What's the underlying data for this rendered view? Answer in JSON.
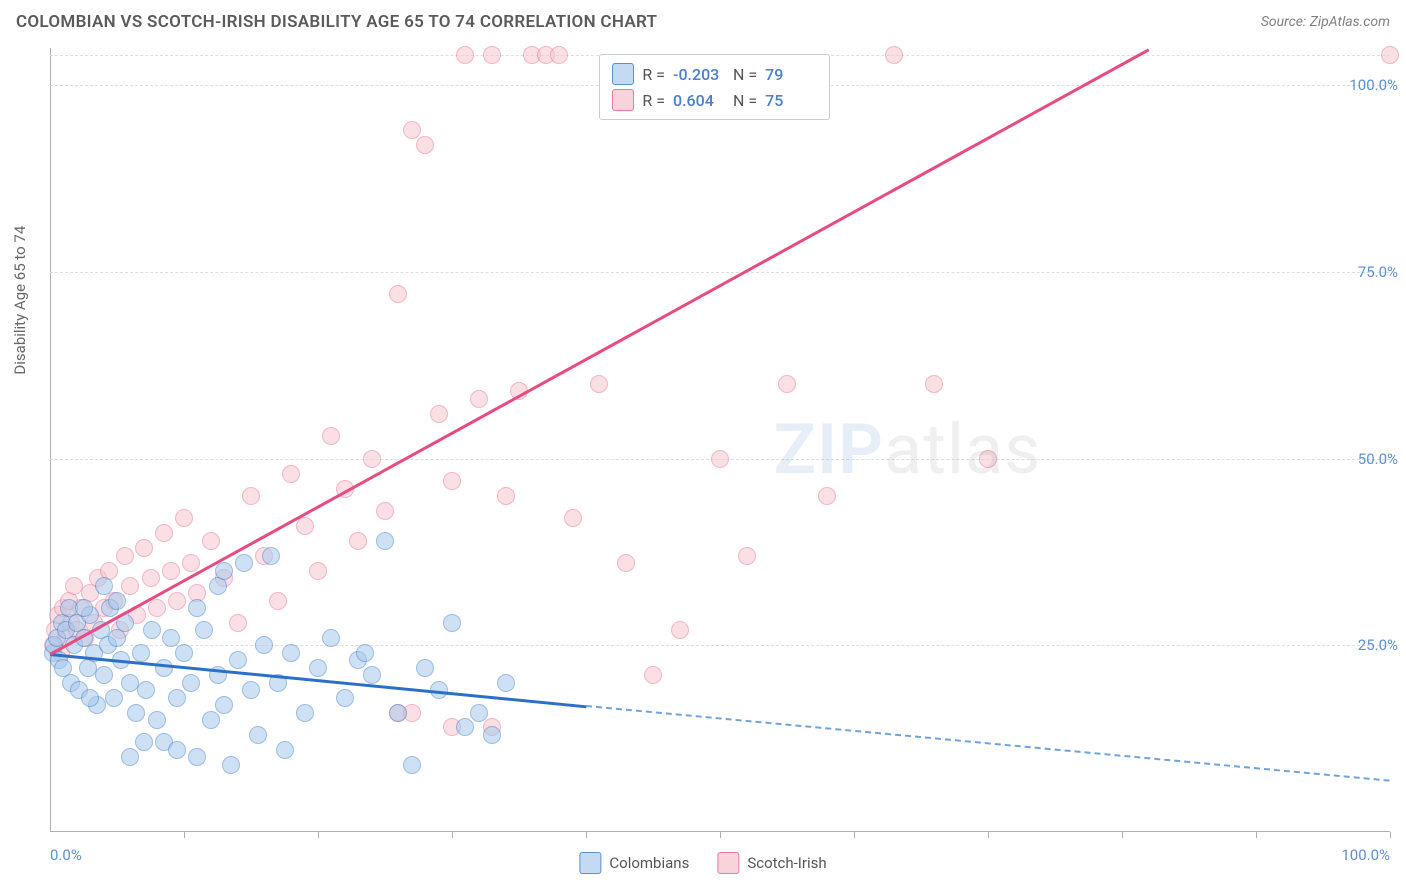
{
  "header": {
    "title": "COLOMBIAN VS SCOTCH-IRISH DISABILITY AGE 65 TO 74 CORRELATION CHART",
    "source": "Source: ZipAtlas.com"
  },
  "watermark": {
    "zip": "ZIP",
    "atlas": "atlas"
  },
  "chart": {
    "type": "scatter",
    "xlim": [
      0,
      100
    ],
    "ylim": [
      0,
      105
    ],
    "y_axis_label": "Disability Age 65 to 74",
    "y_ticks": [
      25,
      50,
      75,
      100
    ],
    "y_tick_labels": [
      "25.0%",
      "50.0%",
      "75.0%",
      "100.0%"
    ],
    "x_ticks": [
      10,
      20,
      30,
      40,
      50,
      60,
      70,
      80,
      90,
      100
    ],
    "x_label_min": "0.0%",
    "x_label_max": "100.0%",
    "grid_color": "#dddddd",
    "background_color": "#ffffff",
    "axis_font_color": "#5b8fd6",
    "series": {
      "blue": {
        "name": "Colombians",
        "fill": "#a7c9ec",
        "stroke": "#4a87c7",
        "r_label": "R =",
        "r_value": "-0.203",
        "n_label": "N =",
        "n_value": "79",
        "trend": {
          "x1": 0,
          "y1": 24,
          "x2_solid": 40,
          "y2_solid": 17,
          "x2_dash": 100,
          "y2_dash": 7
        },
        "points": [
          [
            0.2,
            24
          ],
          [
            0.3,
            25
          ],
          [
            0.5,
            26
          ],
          [
            0.7,
            23
          ],
          [
            0.9,
            28
          ],
          [
            1.0,
            22
          ],
          [
            1.2,
            27
          ],
          [
            1.4,
            30
          ],
          [
            1.6,
            20
          ],
          [
            1.8,
            25
          ],
          [
            2.0,
            28
          ],
          [
            2.2,
            19
          ],
          [
            2.5,
            26
          ],
          [
            2.8,
            22
          ],
          [
            3.0,
            29
          ],
          [
            3.3,
            24
          ],
          [
            3.5,
            17
          ],
          [
            3.8,
            27
          ],
          [
            4.0,
            21
          ],
          [
            4.3,
            25
          ],
          [
            4.5,
            30
          ],
          [
            4.8,
            18
          ],
          [
            5.0,
            26
          ],
          [
            5.3,
            23
          ],
          [
            5.6,
            28
          ],
          [
            6.0,
            20
          ],
          [
            6.4,
            16
          ],
          [
            6.8,
            24
          ],
          [
            7.2,
            19
          ],
          [
            7.6,
            27
          ],
          [
            8.0,
            15
          ],
          [
            8.5,
            22
          ],
          [
            9.0,
            26
          ],
          [
            9.5,
            18
          ],
          [
            10.0,
            24
          ],
          [
            10.5,
            20
          ],
          [
            11.0,
            10
          ],
          [
            11.5,
            27
          ],
          [
            12.0,
            15
          ],
          [
            12.5,
            21
          ],
          [
            13.0,
            17
          ],
          [
            13.5,
            9
          ],
          [
            14.0,
            23
          ],
          [
            14.5,
            36
          ],
          [
            15.0,
            19
          ],
          [
            15.5,
            13
          ],
          [
            16.0,
            25
          ],
          [
            16.5,
            37
          ],
          [
            17.0,
            20
          ],
          [
            17.5,
            11
          ],
          [
            18.0,
            24
          ],
          [
            19.0,
            16
          ],
          [
            20.0,
            22
          ],
          [
            21.0,
            26
          ],
          [
            22.0,
            18
          ],
          [
            23.0,
            23
          ],
          [
            24.0,
            21
          ],
          [
            23.5,
            24
          ],
          [
            25.0,
            39
          ],
          [
            26.0,
            16
          ],
          [
            27.0,
            9
          ],
          [
            28.0,
            22
          ],
          [
            29.0,
            19
          ],
          [
            30.0,
            28
          ],
          [
            31.0,
            14
          ],
          [
            32.0,
            16
          ],
          [
            33.0,
            13
          ],
          [
            34.0,
            20
          ],
          [
            6.0,
            10
          ],
          [
            7.0,
            12
          ],
          [
            8.5,
            12
          ],
          [
            9.5,
            11
          ],
          [
            11.0,
            30
          ],
          [
            12.5,
            33
          ],
          [
            5.0,
            31
          ],
          [
            4.0,
            33
          ],
          [
            3.0,
            18
          ],
          [
            2.5,
            30
          ],
          [
            13.0,
            35
          ]
        ]
      },
      "pink": {
        "name": "Scotch-Irish",
        "fill": "#f7c6cf",
        "stroke": "#e87a9a",
        "r_label": "R =",
        "r_value": "0.604",
        "n_label": "N =",
        "n_value": "75",
        "trend": {
          "x1": 0,
          "y1": 24,
          "x2": 82,
          "y2": 105
        },
        "points": [
          [
            0.2,
            25
          ],
          [
            0.4,
            27
          ],
          [
            0.6,
            29
          ],
          [
            0.8,
            24
          ],
          [
            1.0,
            30
          ],
          [
            1.2,
            26
          ],
          [
            1.4,
            31
          ],
          [
            1.6,
            28
          ],
          [
            1.8,
            33
          ],
          [
            2.0,
            27
          ],
          [
            2.3,
            30
          ],
          [
            2.6,
            26
          ],
          [
            3.0,
            32
          ],
          [
            3.3,
            28
          ],
          [
            3.6,
            34
          ],
          [
            4.0,
            30
          ],
          [
            4.4,
            35
          ],
          [
            4.8,
            31
          ],
          [
            5.2,
            27
          ],
          [
            5.6,
            37
          ],
          [
            6.0,
            33
          ],
          [
            6.5,
            29
          ],
          [
            7.0,
            38
          ],
          [
            7.5,
            34
          ],
          [
            8.0,
            30
          ],
          [
            8.5,
            40
          ],
          [
            9.0,
            35
          ],
          [
            9.5,
            31
          ],
          [
            10.0,
            42
          ],
          [
            10.5,
            36
          ],
          [
            11.0,
            32
          ],
          [
            12.0,
            39
          ],
          [
            13.0,
            34
          ],
          [
            14.0,
            28
          ],
          [
            15.0,
            45
          ],
          [
            16.0,
            37
          ],
          [
            17.0,
            31
          ],
          [
            18.0,
            48
          ],
          [
            19.0,
            41
          ],
          [
            20.0,
            35
          ],
          [
            21.0,
            53
          ],
          [
            22.0,
            46
          ],
          [
            23.0,
            39
          ],
          [
            24.0,
            50
          ],
          [
            25.0,
            43
          ],
          [
            26.0,
            72
          ],
          [
            27.0,
            94
          ],
          [
            28.0,
            92
          ],
          [
            29.0,
            56
          ],
          [
            30.0,
            47
          ],
          [
            31.0,
            104
          ],
          [
            32.0,
            58
          ],
          [
            33.0,
            104
          ],
          [
            34.0,
            45
          ],
          [
            35.0,
            59
          ],
          [
            36.0,
            104
          ],
          [
            37.0,
            104
          ],
          [
            38.0,
            104
          ],
          [
            39.0,
            42
          ],
          [
            41.0,
            60
          ],
          [
            43.0,
            36
          ],
          [
            45.0,
            21
          ],
          [
            47.0,
            27
          ],
          [
            50.0,
            50
          ],
          [
            52.0,
            37
          ],
          [
            55.0,
            60
          ],
          [
            58.0,
            45
          ],
          [
            63.0,
            104
          ],
          [
            66.0,
            60
          ],
          [
            70.0,
            50
          ],
          [
            100.0,
            104
          ],
          [
            30.0,
            14
          ],
          [
            33.0,
            14
          ],
          [
            26.0,
            16
          ],
          [
            27.0,
            16
          ]
        ]
      }
    }
  },
  "bottom_legend": {
    "blue_label": "Colombians",
    "pink_label": "Scotch-Irish"
  }
}
